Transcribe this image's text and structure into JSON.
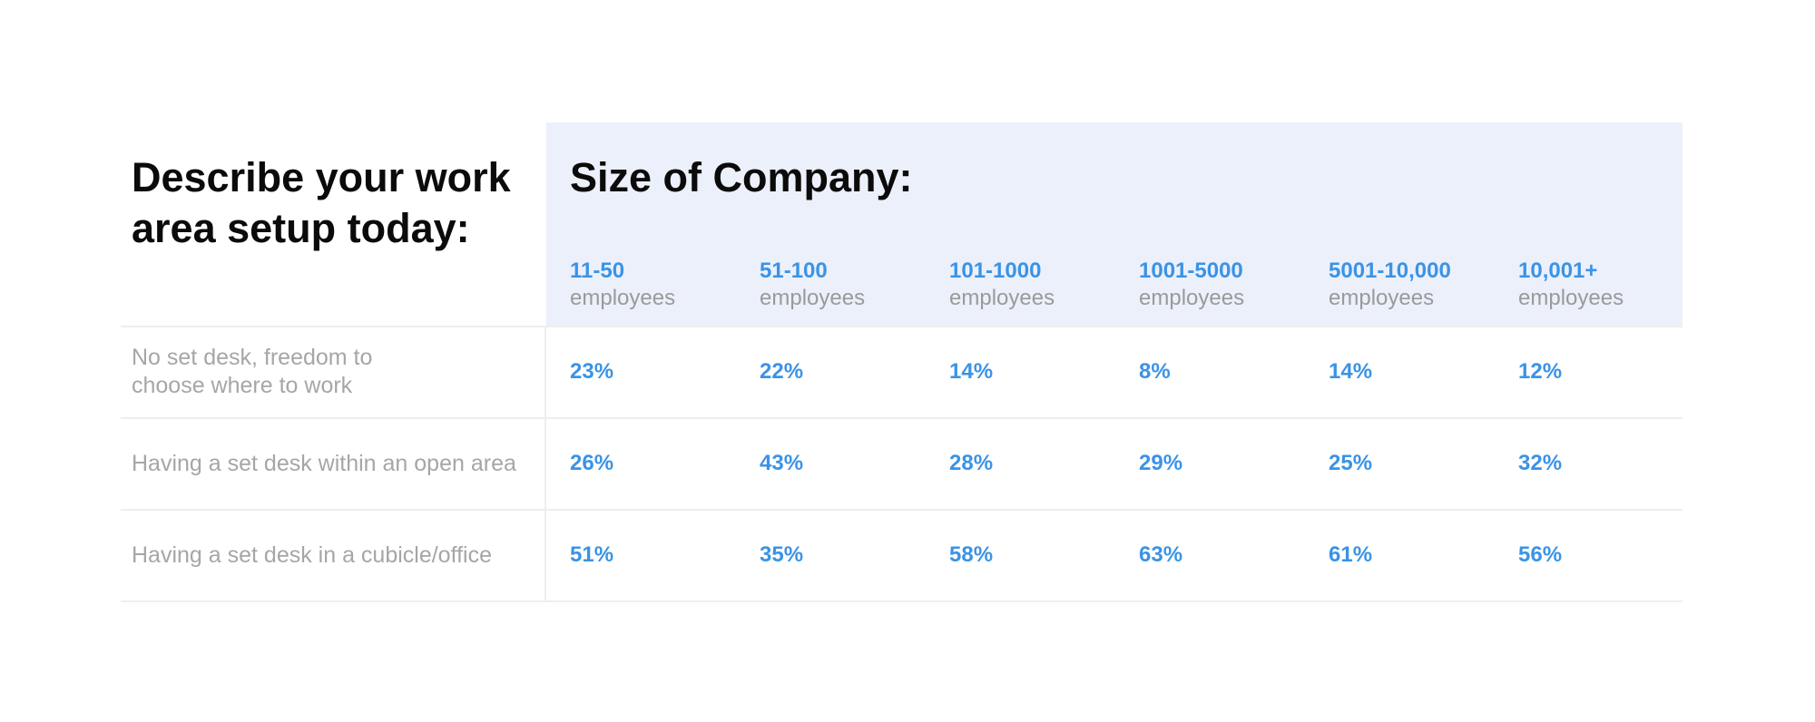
{
  "chart_data": {
    "type": "table",
    "row_header_title": "Describe your work area setup today:",
    "title": "Size of Company:",
    "columns": [
      {
        "range": "11-50",
        "unit": "employees"
      },
      {
        "range": "51-100",
        "unit": "employees"
      },
      {
        "range": "101-1000",
        "unit": "employees"
      },
      {
        "range": "1001-5000",
        "unit": "employees"
      },
      {
        "range": "5001-10,000",
        "unit": "employees"
      },
      {
        "range": "10,001+",
        "unit": "employees"
      }
    ],
    "rows": [
      {
        "label": "No set desk, freedom to choose where to work",
        "values": [
          "23%",
          "22%",
          "14%",
          "8%",
          "14%",
          "12%"
        ]
      },
      {
        "label": "Having a set desk within an open area",
        "values": [
          "26%",
          "43%",
          "28%",
          "29%",
          "25%",
          "32%"
        ]
      },
      {
        "label": "Having a set desk in a cubicle/office",
        "values": [
          "51%",
          "35%",
          "58%",
          "63%",
          "61%",
          "56%"
        ]
      }
    ]
  },
  "colors": {
    "accent": "#3a93e6",
    "header_background": "#ecf0fb",
    "label_text": "#a6a6a6",
    "title_text": "#0b0b0b"
  }
}
